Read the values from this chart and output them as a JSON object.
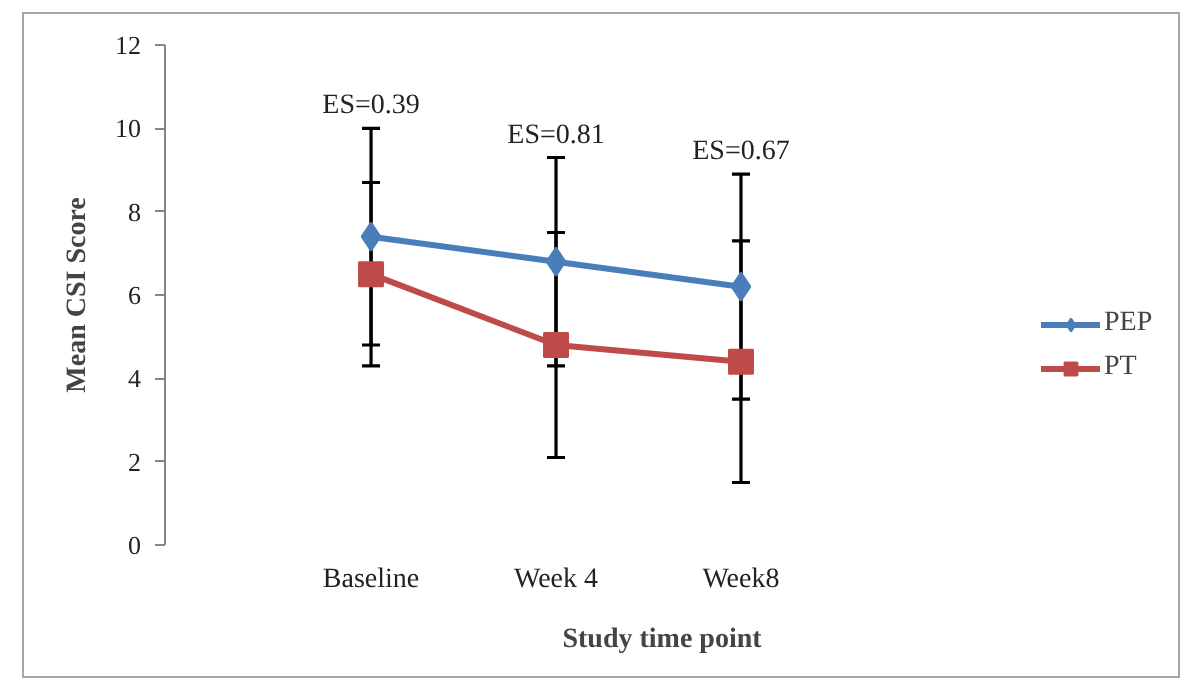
{
  "chart_data": {
    "type": "line",
    "xlabel": "Study time point",
    "ylabel": "Mean CSI Score",
    "categories": [
      "Baseline",
      "Week 4",
      "Week8"
    ],
    "series": [
      {
        "name": "PEP",
        "color": "#4a7ebb",
        "marker": "diamond",
        "values": [
          7.4,
          6.8,
          6.2
        ],
        "errors": [
          2.6,
          2.5,
          2.7
        ]
      },
      {
        "name": "PT",
        "color": "#be4b48",
        "marker": "square",
        "values": [
          6.5,
          4.8,
          4.4
        ],
        "errors": [
          2.2,
          2.7,
          2.9
        ]
      }
    ],
    "ylim": [
      0,
      12
    ],
    "yticks": [
      0,
      2,
      4,
      6,
      8,
      10,
      12
    ],
    "legend": "right",
    "annotations": [
      "ES=0.39",
      "ES=0.81",
      "ES=0.67"
    ]
  }
}
